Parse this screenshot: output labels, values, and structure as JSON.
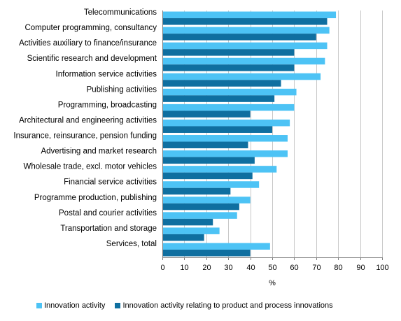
{
  "chart_data": {
    "type": "bar",
    "orientation": "horizontal",
    "categories": [
      "Telecommunications",
      "Computer programming, consultancy",
      "Activities auxiliary to finance/insurance",
      "Scientific research and development",
      "Information service activities",
      "Publishing activities",
      "Programming, broadcasting",
      "Architectural and engineering activities",
      "Insurance, reinsurance, pension funding",
      "Advertising and market research",
      "Wholesale trade, excl. motor vehicles",
      "Financial service activities",
      "Programme production, publishing",
      "Postal and courier activities",
      "Transportation and storage",
      "Services, total"
    ],
    "series": [
      {
        "name": "Innovation activity",
        "color": "#4DC3F5",
        "values": [
          79,
          76,
          75,
          74,
          72,
          61,
          60,
          58,
          57,
          57,
          52,
          44,
          40,
          34,
          26,
          49
        ]
      },
      {
        "name": "Innovation activity relating to product and process innovations",
        "color": "#0F6FA0",
        "values": [
          75,
          70,
          60,
          60,
          54,
          51,
          40,
          50,
          39,
          42,
          41,
          31,
          35,
          23,
          19,
          40
        ]
      }
    ],
    "xlabel": "%",
    "xlim": [
      0,
      100
    ],
    "xticks": [
      "0",
      "10",
      "20",
      "30",
      "40",
      "50",
      "60",
      "70",
      "80",
      "90",
      "100"
    ],
    "grid": "vertical",
    "legend": "bottom"
  }
}
